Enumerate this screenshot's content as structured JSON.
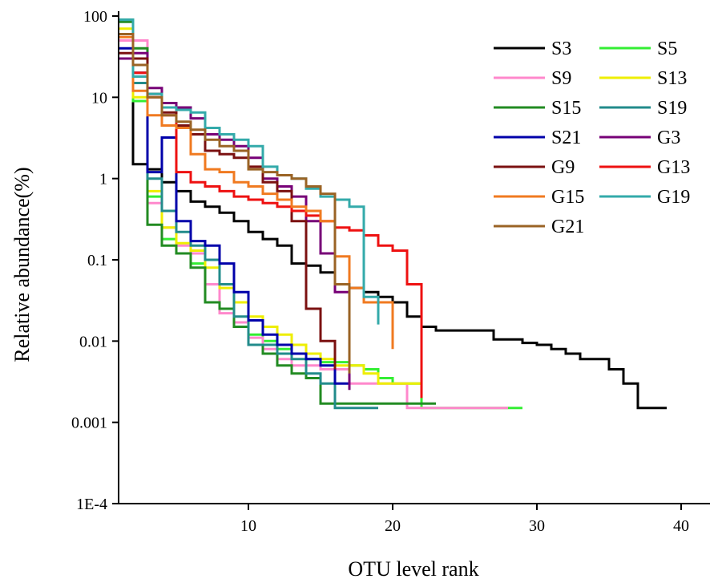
{
  "chart_data": {
    "type": "line",
    "title": "",
    "xlabel": "OTU level rank",
    "ylabel": "Relative abundance(%)",
    "xlim": [
      1,
      42
    ],
    "ylim": [
      0.0001,
      100
    ],
    "yscale": "log",
    "x_ticks": [
      10,
      20,
      30,
      40
    ],
    "y_ticks": [
      100,
      10,
      1,
      0.1,
      0.01,
      0.001,
      0.0001
    ],
    "y_tick_labels": [
      "100",
      "10",
      "1",
      "0.1",
      "0.01",
      "0.001",
      "1E-4"
    ],
    "grid": false,
    "legend_position": "top-right",
    "series": [
      {
        "name": "S3",
        "color": "#000000",
        "x": [
          1,
          2,
          3,
          4,
          5,
          6,
          7,
          8,
          9,
          10,
          11,
          12,
          13,
          14,
          15,
          16,
          17,
          18,
          19,
          20,
          21,
          22,
          23,
          24,
          25,
          26,
          27,
          28,
          29,
          30,
          31,
          32,
          33,
          34,
          35,
          36,
          37,
          38,
          39
        ],
        "y": [
          90,
          1.5,
          1.3,
          0.9,
          0.7,
          0.52,
          0.45,
          0.38,
          0.3,
          0.22,
          0.18,
          0.15,
          0.09,
          0.085,
          0.07,
          0.05,
          0.045,
          0.04,
          0.035,
          0.03,
          0.02,
          0.015,
          0.0135,
          0.0135,
          0.0135,
          0.0135,
          0.0105,
          0.0105,
          0.0095,
          0.009,
          0.008,
          0.007,
          0.006,
          0.006,
          0.0045,
          0.003,
          0.0015,
          0.0015,
          0.0015
        ]
      },
      {
        "name": "S5",
        "color": "#33ee33",
        "x": [
          1,
          2,
          3,
          4,
          5,
          6,
          7,
          8,
          9,
          10,
          11,
          12,
          13,
          14,
          15,
          16,
          17,
          18,
          19,
          20,
          21,
          22,
          23,
          24,
          25,
          26,
          27,
          28,
          29
        ],
        "y": [
          90,
          9,
          0.6,
          0.18,
          0.12,
          0.09,
          0.05,
          0.025,
          0.015,
          0.012,
          0.01,
          0.008,
          0.007,
          0.006,
          0.0055,
          0.0055,
          0.005,
          0.0045,
          0.0035,
          0.003,
          0.003,
          0.0015,
          0.0015,
          0.0015,
          0.0015,
          0.0015,
          0.0015,
          0.0015,
          0.0015
        ]
      },
      {
        "name": "S9",
        "color": "#ff88cc",
        "x": [
          1,
          2,
          3,
          4,
          5,
          6,
          7,
          8,
          9,
          10,
          11,
          12,
          13,
          14,
          15,
          16,
          17,
          18,
          19,
          20,
          21,
          22,
          23,
          24,
          25,
          26,
          27,
          28
        ],
        "y": [
          50,
          50,
          0.5,
          0.25,
          0.15,
          0.12,
          0.05,
          0.022,
          0.017,
          0.011,
          0.008,
          0.006,
          0.005,
          0.005,
          0.0045,
          0.0045,
          0.003,
          0.003,
          0.003,
          0.003,
          0.0015,
          0.0015,
          0.0015,
          0.0015,
          0.0015,
          0.0015,
          0.0015,
          0.0015
        ]
      },
      {
        "name": "S13",
        "color": "#eeee00",
        "x": [
          1,
          2,
          3,
          4,
          5,
          6,
          7,
          8,
          9,
          10,
          11,
          12,
          13,
          14,
          15,
          16,
          17,
          18,
          19,
          20,
          21,
          22
        ],
        "y": [
          70,
          10,
          0.7,
          0.25,
          0.16,
          0.13,
          0.08,
          0.045,
          0.03,
          0.02,
          0.015,
          0.012,
          0.009,
          0.007,
          0.006,
          0.005,
          0.005,
          0.004,
          0.003,
          0.003,
          0.003,
          0.003
        ]
      },
      {
        "name": "S15",
        "color": "#228b22",
        "x": [
          1,
          2,
          3,
          4,
          5,
          6,
          7,
          8,
          9,
          10,
          11,
          12,
          13,
          14,
          15,
          16,
          17,
          18,
          19,
          20,
          21,
          22,
          23
        ],
        "y": [
          85,
          40,
          0.27,
          0.15,
          0.12,
          0.08,
          0.03,
          0.025,
          0.015,
          0.009,
          0.007,
          0.005,
          0.004,
          0.0035,
          0.0017,
          0.0017,
          0.0017,
          0.0017,
          0.0017,
          0.0017,
          0.0017,
          0.0017,
          0.0017
        ]
      },
      {
        "name": "S19",
        "color": "#228b8b",
        "x": [
          1,
          2,
          3,
          4,
          5,
          6,
          7,
          8,
          9,
          10,
          11,
          12,
          13,
          14,
          15,
          16,
          17,
          18,
          19
        ],
        "y": [
          90,
          15,
          1,
          0.4,
          0.22,
          0.15,
          0.1,
          0.05,
          0.02,
          0.009,
          0.009,
          0.007,
          0.006,
          0.004,
          0.003,
          0.0015,
          0.0015,
          0.0015,
          0.0015
        ]
      },
      {
        "name": "S21",
        "color": "#0000aa",
        "x": [
          1,
          2,
          3,
          4,
          5,
          6,
          7,
          8,
          9,
          10,
          11,
          12,
          13,
          14,
          15,
          16,
          17
        ],
        "y": [
          40,
          20,
          1.2,
          3.2,
          0.3,
          0.17,
          0.15,
          0.09,
          0.04,
          0.018,
          0.012,
          0.009,
          0.007,
          0.006,
          0.005,
          0.003,
          0.003
        ]
      },
      {
        "name": "G3",
        "color": "#770077",
        "x": [
          1,
          2,
          3,
          4,
          5,
          6,
          7,
          8,
          9,
          10,
          11,
          12,
          13,
          14,
          15,
          16,
          17
        ],
        "y": [
          30,
          35,
          13,
          8.5,
          7.5,
          5.5,
          3.5,
          3,
          2.5,
          1.8,
          1,
          0.8,
          0.6,
          0.3,
          0.12,
          0.04,
          0.0025
        ]
      },
      {
        "name": "G9",
        "color": "#7b1111",
        "x": [
          1,
          2,
          3,
          4,
          5,
          6,
          7,
          8,
          9,
          10,
          11,
          12,
          13,
          14,
          15,
          16
        ],
        "y": [
          35,
          30,
          11,
          6.5,
          4.5,
          3.5,
          2.2,
          2,
          1.8,
          1.4,
          0.9,
          0.7,
          0.3,
          0.025,
          0.01,
          0.0045
        ]
      },
      {
        "name": "G13",
        "color": "#ee1111",
        "x": [
          1,
          2,
          3,
          4,
          5,
          6,
          7,
          8,
          9,
          10,
          11,
          12,
          13,
          14,
          15,
          16,
          17,
          18,
          19,
          20,
          21,
          22
        ],
        "y": [
          60,
          20,
          10,
          6,
          1.2,
          0.9,
          0.8,
          0.7,
          0.6,
          0.55,
          0.5,
          0.45,
          0.4,
          0.35,
          0.3,
          0.25,
          0.23,
          0.2,
          0.15,
          0.13,
          0.05,
          0.002
        ]
      },
      {
        "name": "G15",
        "color": "#f07a20",
        "x": [
          1,
          2,
          3,
          4,
          5,
          6,
          7,
          8,
          9,
          10,
          11,
          12,
          13,
          14,
          15,
          16,
          17,
          18,
          19,
          20
        ],
        "y": [
          55,
          12,
          6,
          4.5,
          4.2,
          2,
          1.3,
          1.2,
          0.9,
          0.8,
          0.65,
          0.55,
          0.45,
          0.4,
          0.3,
          0.11,
          0.045,
          0.03,
          0.03,
          0.008
        ]
      },
      {
        "name": "G19",
        "color": "#33aaaa",
        "x": [
          1,
          2,
          3,
          4,
          5,
          6,
          7,
          8,
          9,
          10,
          11,
          12,
          13,
          14,
          15,
          16,
          17,
          18,
          19
        ],
        "y": [
          90,
          18,
          11,
          7.5,
          7,
          6.5,
          4.2,
          3.5,
          3,
          2.5,
          1.4,
          1.1,
          1,
          0.75,
          0.6,
          0.55,
          0.45,
          0.035,
          0.016
        ]
      },
      {
        "name": "G21",
        "color": "#9a6325",
        "x": [
          1,
          2,
          3,
          4,
          5,
          6,
          7,
          8,
          9,
          10,
          11,
          12,
          13,
          14,
          15,
          16,
          17
        ],
        "y": [
          60,
          25,
          10,
          6,
          5,
          4,
          3,
          2.5,
          2.2,
          1.3,
          1.2,
          1.1,
          1,
          0.8,
          0.65,
          0.05,
          0.004
        ]
      }
    ]
  }
}
